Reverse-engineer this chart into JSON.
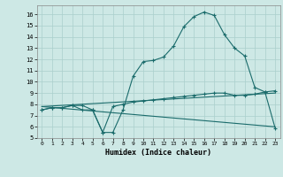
{
  "xlabel": "Humidex (Indice chaleur)",
  "bg_color": "#cde8e5",
  "grid_color": "#aacfcc",
  "line_color": "#1a6b6b",
  "xlim": [
    -0.5,
    23.5
  ],
  "ylim": [
    5,
    16.8
  ],
  "yticks": [
    5,
    6,
    7,
    8,
    9,
    10,
    11,
    12,
    13,
    14,
    15,
    16
  ],
  "xticks": [
    0,
    1,
    2,
    3,
    4,
    5,
    6,
    7,
    8,
    9,
    10,
    11,
    12,
    13,
    14,
    15,
    16,
    17,
    18,
    19,
    20,
    21,
    22,
    23
  ],
  "line1_x": [
    0,
    1,
    2,
    3,
    4,
    5,
    6,
    7,
    8,
    9,
    10,
    11,
    12,
    13,
    14,
    15,
    16,
    17,
    18,
    19,
    20,
    21,
    22,
    23
  ],
  "line1_y": [
    7.5,
    7.7,
    7.7,
    7.9,
    7.9,
    7.5,
    5.5,
    5.5,
    7.5,
    10.5,
    11.8,
    11.9,
    12.2,
    13.2,
    14.9,
    15.8,
    16.2,
    15.9,
    14.2,
    13.0,
    12.3,
    9.5,
    9.1,
    9.2
  ],
  "line2_x": [
    0,
    1,
    2,
    3,
    4,
    5,
    6,
    7,
    8,
    9,
    10,
    11,
    12,
    13,
    14,
    15,
    16,
    17,
    18,
    19,
    20,
    21,
    22,
    23
  ],
  "line2_y": [
    7.5,
    7.7,
    7.7,
    7.9,
    7.5,
    7.5,
    5.5,
    7.8,
    8.0,
    8.2,
    8.3,
    8.4,
    8.5,
    8.6,
    8.7,
    8.8,
    8.9,
    9.0,
    9.0,
    8.8,
    8.8,
    8.9,
    9.1,
    5.9
  ],
  "line3_x": [
    0,
    23
  ],
  "line3_y": [
    7.8,
    9.0
  ],
  "line4_x": [
    0,
    23
  ],
  "line4_y": [
    7.8,
    6.0
  ]
}
